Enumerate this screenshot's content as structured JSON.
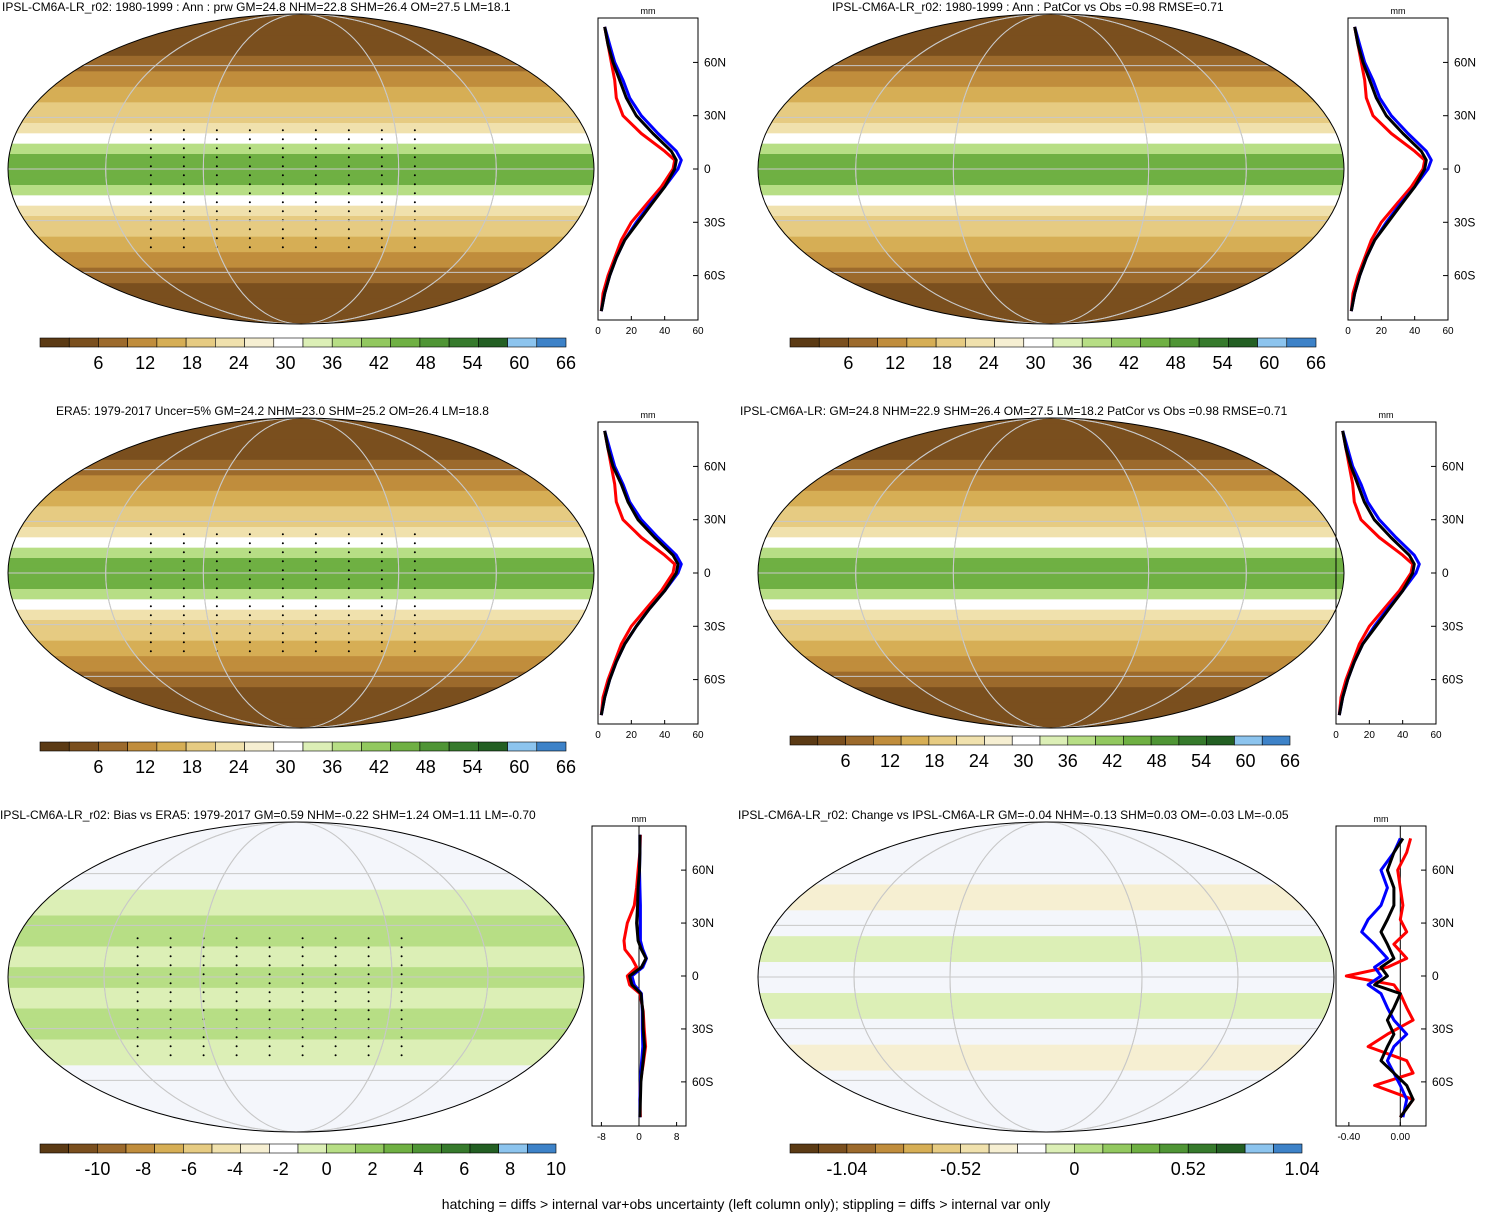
{
  "colors": {
    "palette": [
      "#5b3a14",
      "#7a4f1e",
      "#9c6a2c",
      "#c08d3c",
      "#d6ae55",
      "#e6cb82",
      "#f0e1ad",
      "#f6efd2",
      "#ffffff",
      "#dcefb6",
      "#b7de85",
      "#92c85f",
      "#6fb043",
      "#4f9535",
      "#367a2c",
      "#235f23",
      "#8cc4ee",
      "#3d82c8"
    ],
    "model": "#000000",
    "obs": "#0000ff",
    "other": "#ff0000",
    "grid": "#c8c8c8"
  },
  "footer": "hatching = diffs > internal var+obs uncertainty (left column only); stippling = diffs > internal var only",
  "panels": [
    {
      "title": "IPSL-CM6A-LR_r02: 1980-1999 : Ann : prw GM=24.8 NHM=22.8 SHM=26.4 OM=27.5 LM=18.1",
      "kind": "mean",
      "stipple": true
    },
    {
      "title": "IPSL-CM6A-LR_r02: 1980-1999 : Ann : PatCor vs Obs =0.98 RMSE=0.71",
      "kind": "mean",
      "stipple": false
    },
    {
      "title": "ERA5: 1979-2017 Uncer=5% GM=24.2 NHM=23.0 SHM=25.2 OM=26.4 LM=18.8",
      "kind": "mean",
      "stipple": true
    },
    {
      "title": "IPSL-CM6A-LR: GM=24.8 NHM=22.9 SHM=26.4 OM=27.5 LM=18.2 PatCor vs Obs =0.98 RMSE=0.71",
      "kind": "mean",
      "stipple": false
    },
    {
      "title": "IPSL-CM6A-LR_r02: Bias vs ERA5: 1979-2017 GM=0.59 NHM=-0.22 SHM=1.24 OM=1.11 LM=-0.70",
      "kind": "bias",
      "stipple": true
    },
    {
      "title": "IPSL-CM6A-LR_r02: Change vs IPSL-CM6A-LR GM=-0.04 NHM=-0.13 SHM=0.03 OM=-0.03 LM=-0.05",
      "kind": "change",
      "stipple": false
    }
  ],
  "chart_data": [
    {
      "type": "line",
      "panel": "zonal-mean-prw-r02",
      "unit": "mm",
      "xlim": [
        0,
        60
      ],
      "xticks": [
        "0",
        "20",
        "40",
        "60"
      ],
      "ylim": [
        -85,
        85
      ],
      "yticks": [
        "60N",
        "30N",
        "0",
        "30S",
        "60S"
      ],
      "lat": [
        -80,
        -70,
        -60,
        -50,
        -40,
        -30,
        -20,
        -10,
        0,
        5,
        10,
        20,
        30,
        40,
        50,
        60,
        70,
        80
      ],
      "series": [
        {
          "color": "model",
          "values": [
            2,
            4,
            7,
            11,
            16,
            24,
            32,
            40,
            46,
            47,
            44,
            33,
            23,
            17,
            13,
            9,
            6,
            4
          ]
        },
        {
          "color": "obs",
          "values": [
            2,
            4,
            7,
            11,
            16,
            23,
            31,
            40,
            48,
            50,
            47,
            36,
            26,
            19,
            15,
            10,
            7,
            4
          ]
        },
        {
          "color": "other",
          "values": [
            2,
            3,
            6,
            10,
            14,
            20,
            29,
            38,
            45,
            46,
            40,
            26,
            15,
            11,
            10,
            8,
            6,
            4
          ]
        }
      ],
      "colorbar": {
        "labels": [
          "6",
          "12",
          "18",
          "24",
          "30",
          "36",
          "42",
          "48",
          "54",
          "60",
          "66"
        ]
      }
    },
    {
      "type": "line",
      "panel": "zonal-mean-patcor",
      "unit": "mm",
      "xlim": [
        0,
        60
      ],
      "xticks": [
        "0",
        "20",
        "40",
        "60"
      ],
      "ylim": [
        -85,
        85
      ],
      "yticks": [
        "60N",
        "30N",
        "0",
        "30S",
        "60S"
      ],
      "lat": [
        -80,
        -70,
        -60,
        -50,
        -40,
        -30,
        -20,
        -10,
        0,
        5,
        10,
        20,
        30,
        40,
        50,
        60,
        70,
        80
      ],
      "series": [
        {
          "color": "model",
          "values": [
            2,
            4,
            7,
            11,
            16,
            24,
            32,
            40,
            46,
            47,
            44,
            33,
            23,
            17,
            13,
            9,
            6,
            4
          ]
        },
        {
          "color": "obs",
          "values": [
            2,
            4,
            7,
            11,
            16,
            23,
            31,
            40,
            48,
            50,
            47,
            36,
            26,
            19,
            15,
            10,
            7,
            4
          ]
        },
        {
          "color": "other",
          "values": [
            2,
            3,
            6,
            10,
            14,
            20,
            29,
            38,
            45,
            46,
            40,
            26,
            15,
            11,
            10,
            8,
            6,
            4
          ]
        }
      ],
      "colorbar": {
        "labels": [
          "6",
          "12",
          "18",
          "24",
          "30",
          "36",
          "42",
          "48",
          "54",
          "60",
          "66"
        ]
      }
    },
    {
      "type": "line",
      "panel": "zonal-mean-era5",
      "unit": "mm",
      "xlim": [
        0,
        60
      ],
      "xticks": [
        "0",
        "20",
        "40",
        "60"
      ],
      "ylim": [
        -85,
        85
      ],
      "yticks": [
        "60N",
        "30N",
        "0",
        "30S",
        "60S"
      ],
      "lat": [
        -80,
        -70,
        -60,
        -50,
        -40,
        -30,
        -20,
        -10,
        0,
        5,
        10,
        20,
        30,
        40,
        50,
        60,
        70,
        80
      ],
      "series": [
        {
          "color": "model",
          "values": [
            2,
            4,
            7,
            11,
            16,
            23,
            31,
            40,
            47,
            48,
            45,
            34,
            24,
            18,
            14,
            9,
            6,
            4
          ]
        },
        {
          "color": "obs",
          "values": [
            2,
            4,
            7,
            11,
            16,
            23,
            31,
            40,
            48,
            50,
            47,
            36,
            26,
            19,
            15,
            10,
            7,
            4
          ]
        },
        {
          "color": "other",
          "values": [
            2,
            3,
            6,
            10,
            14,
            20,
            29,
            38,
            45,
            46,
            40,
            26,
            15,
            11,
            10,
            8,
            6,
            4
          ]
        }
      ],
      "colorbar": {
        "labels": [
          "6",
          "12",
          "18",
          "24",
          "30",
          "36",
          "42",
          "48",
          "54",
          "60",
          "66"
        ]
      }
    },
    {
      "type": "line",
      "panel": "zonal-mean-ensemble",
      "unit": "mm",
      "xlim": [
        0,
        60
      ],
      "xticks": [
        "0",
        "20",
        "40",
        "60"
      ],
      "ylim": [
        -85,
        85
      ],
      "yticks": [
        "60N",
        "30N",
        "0",
        "30S",
        "60S"
      ],
      "lat": [
        -80,
        -70,
        -60,
        -50,
        -40,
        -30,
        -20,
        -10,
        0,
        5,
        10,
        20,
        30,
        40,
        50,
        60,
        70,
        80
      ],
      "series": [
        {
          "color": "model",
          "values": [
            2,
            4,
            7,
            11,
            16,
            24,
            32,
            40,
            46,
            47,
            44,
            33,
            23,
            17,
            13,
            9,
            6,
            4
          ]
        },
        {
          "color": "obs",
          "values": [
            2,
            4,
            7,
            11,
            16,
            23,
            31,
            40,
            48,
            50,
            47,
            36,
            26,
            19,
            15,
            10,
            7,
            4
          ]
        },
        {
          "color": "other",
          "values": [
            2,
            3,
            6,
            10,
            14,
            20,
            29,
            38,
            45,
            46,
            40,
            26,
            15,
            11,
            10,
            8,
            6,
            4
          ]
        }
      ],
      "colorbar": {
        "labels": [
          "6",
          "12",
          "18",
          "24",
          "30",
          "36",
          "42",
          "48",
          "54",
          "60",
          "66"
        ]
      }
    },
    {
      "type": "line",
      "panel": "zonal-bias",
      "unit": "mm",
      "xlim": [
        -10,
        10
      ],
      "xticks": [
        "-8",
        "0",
        "8"
      ],
      "ylim": [
        -85,
        85
      ],
      "yticks": [
        "60N",
        "30N",
        "0",
        "30S",
        "60S"
      ],
      "lat": [
        -80,
        -70,
        -60,
        -50,
        -40,
        -30,
        -20,
        -10,
        -5,
        0,
        5,
        10,
        15,
        20,
        30,
        40,
        50,
        60,
        70,
        80
      ],
      "series": [
        {
          "color": "model",
          "values": [
            0.2,
            0.3,
            0.4,
            0.8,
            1.2,
            0.9,
            0.8,
            0.4,
            -1.5,
            -2.0,
            0.5,
            1.5,
            0.5,
            -0.2,
            -0.5,
            -0.3,
            -0.2,
            0.1,
            0.2,
            0.2
          ]
        },
        {
          "color": "obs",
          "values": [
            0.2,
            0.2,
            0.3,
            0.5,
            0.8,
            0.7,
            0.7,
            0.5,
            -1.0,
            -1.5,
            0.8,
            1.6,
            0.8,
            0.3,
            0.3,
            0.3,
            0.2,
            0.1,
            0.2,
            0.2
          ]
        },
        {
          "color": "other",
          "values": [
            0.3,
            0.2,
            0.3,
            0.9,
            1.4,
            1.1,
            0.9,
            0.2,
            -2.0,
            -2.5,
            -0.5,
            -1.5,
            -3.0,
            -3.2,
            -2.5,
            -1.0,
            -0.5,
            -0.2,
            0.2,
            0.3
          ]
        }
      ],
      "colorbar": {
        "labels": [
          "-10",
          "-8",
          "-6",
          "-4",
          "-2",
          "0",
          "2",
          "4",
          "6",
          "8",
          "10"
        ]
      }
    },
    {
      "type": "line",
      "panel": "zonal-change",
      "unit": "mm",
      "xlim": [
        -0.5,
        0.2
      ],
      "xticks": [
        "-0.40",
        "0.00"
      ],
      "ylim": [
        -85,
        85
      ],
      "yticks": [
        "60N",
        "30N",
        "0",
        "30S",
        "60S"
      ],
      "lat": [
        -80,
        -70,
        -62,
        -55,
        -48,
        -40,
        -33,
        -25,
        -18,
        -10,
        -5,
        0,
        5,
        10,
        18,
        25,
        32,
        40,
        50,
        60,
        70,
        78
      ],
      "series": [
        {
          "color": "model",
          "values": [
            0.0,
            0.1,
            0.05,
            -0.05,
            -0.15,
            -0.1,
            -0.05,
            -0.1,
            -0.05,
            0.0,
            -0.2,
            -0.1,
            -0.15,
            -0.05,
            -0.1,
            -0.15,
            -0.1,
            -0.05,
            -0.05,
            -0.1,
            -0.05,
            0.02
          ]
        },
        {
          "color": "obs",
          "values": [
            0.02,
            0.05,
            0.0,
            -0.05,
            -0.1,
            -0.05,
            0.05,
            -0.05,
            -0.1,
            -0.15,
            -0.25,
            -0.15,
            -0.2,
            -0.1,
            -0.2,
            -0.3,
            -0.25,
            -0.15,
            -0.1,
            -0.15,
            -0.05,
            0.0
          ]
        },
        {
          "color": "other",
          "values": [
            0.0,
            0.1,
            -0.2,
            0.1,
            0.05,
            -0.25,
            -0.1,
            0.1,
            0.05,
            0.0,
            -0.05,
            -0.42,
            -0.1,
            0.05,
            -0.05,
            0.05,
            0.0,
            0.02,
            0.0,
            -0.02,
            0.05,
            0.08
          ]
        }
      ],
      "colorbar": {
        "labels": [
          "-1.04",
          "-0.52",
          "0",
          "0.52",
          "1.04"
        ]
      }
    }
  ]
}
